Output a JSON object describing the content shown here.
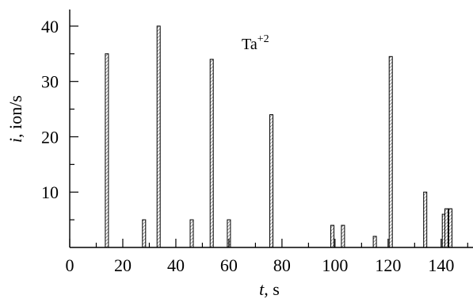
{
  "chart_data": {
    "type": "bar",
    "xlabel": {
      "var": "t",
      "unit": ", s"
    },
    "ylabel": {
      "var": "i",
      "unit": ", ion/s"
    },
    "annotation": {
      "base": "Ta",
      "sup": "+2"
    },
    "xlim": [
      0,
      152
    ],
    "ylim": [
      0,
      43
    ],
    "xticks": [
      0,
      20,
      40,
      60,
      80,
      100,
      120,
      140
    ],
    "yticks": [
      10,
      20,
      30,
      40
    ],
    "x": [
      14,
      28,
      33.5,
      46,
      53.5,
      60,
      76,
      99,
      103,
      115,
      121,
      134,
      141,
      142,
      143.5
    ],
    "values": [
      35,
      5,
      40,
      5,
      34,
      5,
      24,
      4,
      4,
      2,
      34.5,
      10,
      6,
      7,
      7
    ],
    "grid": false
  }
}
